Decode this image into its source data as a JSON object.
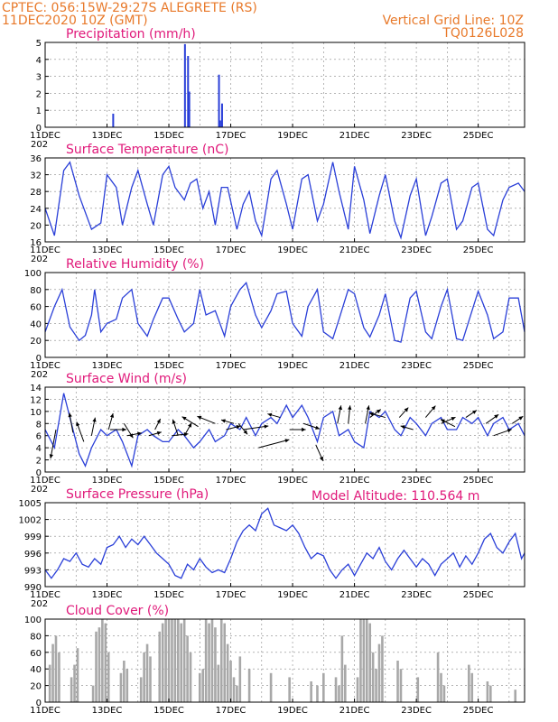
{
  "header": {
    "line1_left": "CPTEC:   056:15W-29:27S   ALEGRETE (RS)",
    "line2_left": "11DEC2020 10Z (GMT)",
    "line2_right": "Vertical Grid Line: 10Z",
    "line3_right": "TQ0126L028"
  },
  "colors": {
    "header": "#e8792a",
    "panel_title": "#e0197a",
    "series": "#2a3fd8",
    "cloud_bar": "#a8a8a8",
    "wind_arrow": "#000000"
  },
  "x_axis": {
    "labels": [
      "11DEC",
      "13DEC",
      "15DEC",
      "17DEC",
      "19DEC",
      "21DEC",
      "23DEC",
      "25DEC"
    ],
    "label_days": [
      0,
      2,
      4,
      6,
      8,
      10,
      12,
      14
    ],
    "range_days": [
      0,
      15.5
    ],
    "cut_prefix": "202"
  },
  "chart_data": [
    {
      "type": "bar",
      "title": "Precipitation (mm/h)",
      "ylim": [
        0,
        5
      ],
      "yticks": [
        "0",
        "1",
        "2",
        "3",
        "4",
        "5"
      ],
      "grid": true,
      "x_days": [
        2.2,
        4.52,
        4.62,
        4.66,
        5.62,
        5.66,
        5.72
      ],
      "values": [
        0.8,
        4.9,
        4.2,
        2.1,
        3.1,
        0.4,
        1.4
      ]
    },
    {
      "type": "line",
      "title": "Surface Temperature (nC)",
      "ylim": [
        16,
        36
      ],
      "yticks": [
        "16",
        "20",
        "24",
        "28",
        "32",
        "36"
      ],
      "grid": true,
      "x_days": [
        0,
        0.3,
        0.6,
        0.8,
        1.1,
        1.5,
        1.8,
        2.0,
        2.3,
        2.5,
        2.8,
        3.0,
        3.3,
        3.5,
        3.8,
        4.0,
        4.2,
        4.5,
        4.7,
        4.9,
        5.1,
        5.3,
        5.5,
        5.7,
        5.9,
        6.2,
        6.4,
        6.6,
        6.8,
        7.0,
        7.3,
        7.5,
        7.8,
        8.0,
        8.3,
        8.5,
        8.8,
        9.0,
        9.3,
        9.5,
        9.8,
        10.0,
        10.3,
        10.5,
        10.8,
        11.0,
        11.3,
        11.5,
        11.8,
        12.0,
        12.3,
        12.5,
        12.8,
        13.0,
        13.3,
        13.5,
        13.8,
        14.0,
        14.3,
        14.5,
        14.8,
        15.0,
        15.3,
        15.5
      ],
      "values": [
        24,
        17.5,
        33,
        35,
        27,
        19,
        20.5,
        32,
        29,
        20,
        29,
        33,
        25,
        20,
        32,
        34,
        29,
        26,
        30,
        31,
        24,
        28,
        20,
        29,
        29,
        19,
        25,
        28,
        21,
        17.5,
        31,
        33,
        25,
        19,
        31,
        32,
        21,
        25,
        35,
        28,
        19,
        34,
        26,
        18,
        27,
        32,
        21,
        17,
        27,
        31,
        17.5,
        22,
        30,
        31,
        19,
        21,
        29,
        30,
        19,
        17.5,
        26,
        29,
        30,
        28
      ]
    },
    {
      "type": "line",
      "title": "Relative Humidity (%)",
      "ylim": [
        0,
        100
      ],
      "yticks": [
        "0",
        "20",
        "40",
        "60",
        "80",
        "100"
      ],
      "grid": true,
      "x_days": [
        0,
        0.3,
        0.55,
        0.8,
        1.1,
        1.3,
        1.5,
        1.6,
        1.8,
        2.0,
        2.3,
        2.5,
        2.8,
        3.0,
        3.3,
        3.5,
        3.8,
        4.0,
        4.3,
        4.5,
        4.8,
        5.0,
        5.2,
        5.5,
        5.8,
        6.0,
        6.3,
        6.5,
        6.8,
        7.0,
        7.3,
        7.5,
        7.8,
        8.0,
        8.3,
        8.5,
        8.8,
        9.0,
        9.3,
        9.5,
        9.8,
        10.0,
        10.3,
        10.5,
        10.8,
        11.0,
        11.3,
        11.5,
        11.8,
        12.0,
        12.3,
        12.5,
        12.8,
        13.0,
        13.3,
        13.5,
        13.8,
        14.0,
        14.3,
        14.5,
        14.8,
        15.0,
        15.3,
        15.5
      ],
      "values": [
        30,
        60,
        80,
        36,
        20,
        26,
        50,
        80,
        30,
        40,
        45,
        70,
        80,
        40,
        25,
        45,
        70,
        70,
        45,
        30,
        40,
        80,
        50,
        55,
        25,
        60,
        80,
        88,
        50,
        35,
        55,
        75,
        78,
        40,
        25,
        60,
        80,
        30,
        22,
        45,
        80,
        75,
        35,
        24,
        50,
        75,
        20,
        18,
        70,
        78,
        30,
        22,
        60,
        80,
        22,
        20,
        55,
        78,
        50,
        22,
        30,
        70,
        70,
        30
      ]
    },
    {
      "type": "line",
      "title": "Surface Wind (m/s)",
      "ylim": [
        0,
        14
      ],
      "yticks": [
        "0",
        "2",
        "4",
        "6",
        "8",
        "10",
        "12",
        "14"
      ],
      "grid": true,
      "x_days": [
        0,
        0.3,
        0.6,
        0.8,
        1.1,
        1.3,
        1.5,
        1.8,
        2.0,
        2.3,
        2.5,
        2.8,
        3.0,
        3.3,
        3.5,
        3.8,
        4.0,
        4.3,
        4.5,
        4.8,
        5.0,
        5.3,
        5.5,
        5.8,
        6.0,
        6.3,
        6.5,
        6.8,
        7.0,
        7.3,
        7.5,
        7.8,
        8.0,
        8.3,
        8.5,
        8.8,
        9.0,
        9.3,
        9.5,
        9.8,
        10.0,
        10.3,
        10.5,
        10.8,
        11.0,
        11.3,
        11.5,
        11.8,
        12.0,
        12.3,
        12.5,
        12.8,
        13.0,
        13.3,
        13.5,
        13.8,
        14.0,
        14.3,
        14.5,
        14.8,
        15.0,
        15.3,
        15.5
      ],
      "values": [
        7,
        4,
        13,
        9,
        3,
        1,
        4,
        7,
        6,
        7,
        5,
        1,
        6,
        7,
        6,
        5,
        5,
        7,
        6,
        4,
        5,
        7,
        5,
        6,
        8,
        7,
        9,
        6,
        8,
        9,
        8,
        11,
        9,
        11,
        9,
        5,
        9,
        10,
        6,
        7,
        5,
        4,
        10,
        9,
        10,
        7,
        6,
        9,
        8,
        6,
        8,
        9,
        7,
        7,
        9,
        8,
        9,
        6,
        8,
        9,
        7,
        8,
        6
      ],
      "arrows": [
        {
          "x": 0.35,
          "y": 7,
          "u": -0.3,
          "v": -1.6
        },
        {
          "x": 0.9,
          "y": 6.5,
          "u": -0.2,
          "v": 1.1
        },
        {
          "x": 1.25,
          "y": 5,
          "u": -0.4,
          "v": 1.1
        },
        {
          "x": 1.5,
          "y": 6,
          "u": 0.2,
          "v": 1.0
        },
        {
          "x": 2.05,
          "y": 7,
          "u": 0.25,
          "v": 0.9
        },
        {
          "x": 2.1,
          "y": 7,
          "u": 0.9,
          "v": 0.0
        },
        {
          "x": 2.55,
          "y": 8,
          "u": 0.5,
          "v": -0.8
        },
        {
          "x": 2.65,
          "y": 6,
          "u": 0.8,
          "v": 0.15
        },
        {
          "x": 3.35,
          "y": 6,
          "u": 0.7,
          "v": 0.2
        },
        {
          "x": 3.55,
          "y": 7,
          "u": 0.3,
          "v": 0.6
        },
        {
          "x": 4.1,
          "y": 6,
          "u": 0.9,
          "v": 0.1
        },
        {
          "x": 4.5,
          "y": 6,
          "u": 0.4,
          "v": 0.7
        },
        {
          "x": 4.3,
          "y": 6,
          "u": -0.3,
          "v": 0.9
        },
        {
          "x": 4.95,
          "y": 7.5,
          "u": -0.9,
          "v": 0.55
        },
        {
          "x": 5.5,
          "y": 8,
          "u": -1.0,
          "v": 0.4
        },
        {
          "x": 5.85,
          "y": 7,
          "u": 0.8,
          "v": 0.2
        },
        {
          "x": 6.1,
          "y": 8,
          "u": -0.7,
          "v": 0.2
        },
        {
          "x": 6.25,
          "y": 8,
          "u": 0.5,
          "v": -0.6
        },
        {
          "x": 6.4,
          "y": 7,
          "u": 1.4,
          "v": 0.2
        },
        {
          "x": 6.9,
          "y": 4,
          "u": 1.7,
          "v": 0.45
        },
        {
          "x": 7.6,
          "y": 9,
          "u": -0.7,
          "v": 0.2
        },
        {
          "x": 7.9,
          "y": 7,
          "u": 0.9,
          "v": 0.0
        },
        {
          "x": 8.35,
          "y": 8,
          "u": 0.9,
          "v": -0.3
        },
        {
          "x": 8.75,
          "y": 4.5,
          "u": 0.4,
          "v": -0.9
        },
        {
          "x": 9.45,
          "y": 8,
          "u": 0.2,
          "v": 1.0
        },
        {
          "x": 9.8,
          "y": 8,
          "u": 0.1,
          "v": 1.0
        },
        {
          "x": 10.35,
          "y": 8,
          "u": 0.2,
          "v": 1.0
        },
        {
          "x": 10.5,
          "y": 9,
          "u": 0.6,
          "v": 0.45
        },
        {
          "x": 11.0,
          "y": 9,
          "u": -0.9,
          "v": 0.25
        },
        {
          "x": 11.45,
          "y": 9,
          "u": 0.5,
          "v": 0.55
        },
        {
          "x": 11.9,
          "y": 7,
          "u": -0.7,
          "v": 0.2
        },
        {
          "x": 12.3,
          "y": 9,
          "u": 0.55,
          "v": 0.65
        },
        {
          "x": 12.8,
          "y": 8,
          "u": 0.8,
          "v": 0.35
        },
        {
          "x": 13.25,
          "y": 7.5,
          "u": -0.8,
          "v": 0.4
        },
        {
          "x": 13.6,
          "y": 9,
          "u": 0.6,
          "v": 0.4
        },
        {
          "x": 14.25,
          "y": 8,
          "u": 0.7,
          "v": 0.5
        },
        {
          "x": 14.5,
          "y": 6,
          "u": 1.0,
          "v": 0.35
        },
        {
          "x": 15.1,
          "y": 8,
          "u": 0.6,
          "v": 0.4
        }
      ]
    },
    {
      "type": "line",
      "title": "Surface Pressure (hPa)",
      "annotation": "Model Altitude: 110.564  m",
      "ylim": [
        990,
        1005
      ],
      "yticks": [
        "990",
        "993",
        "996",
        "999",
        "1002",
        "1005"
      ],
      "grid": true,
      "x_days": [
        0,
        0.2,
        0.4,
        0.6,
        0.8,
        1.0,
        1.2,
        1.4,
        1.6,
        1.8,
        2.0,
        2.2,
        2.4,
        2.6,
        2.8,
        3.0,
        3.2,
        3.4,
        3.6,
        3.8,
        4.0,
        4.2,
        4.4,
        4.6,
        4.8,
        5.0,
        5.2,
        5.4,
        5.6,
        5.8,
        6.0,
        6.2,
        6.4,
        6.6,
        6.8,
        7.0,
        7.2,
        7.4,
        7.6,
        7.8,
        8.0,
        8.2,
        8.4,
        8.6,
        8.8,
        9.0,
        9.2,
        9.4,
        9.6,
        9.8,
        10.0,
        10.2,
        10.4,
        10.6,
        10.8,
        11.0,
        11.2,
        11.4,
        11.6,
        11.8,
        12.0,
        12.2,
        12.4,
        12.6,
        12.8,
        13.0,
        13.2,
        13.4,
        13.6,
        13.8,
        14.0,
        14.2,
        14.4,
        14.6,
        14.8,
        15.0,
        15.2,
        15.4,
        15.5
      ],
      "values": [
        993,
        991.5,
        993,
        995,
        994.5,
        996,
        994,
        993.5,
        995,
        994,
        997,
        997.5,
        999,
        997,
        998.5,
        997.5,
        999,
        997.5,
        996,
        995,
        994,
        992,
        991.5,
        994,
        993,
        995,
        993.5,
        992.5,
        993,
        992.5,
        995,
        998,
        1000,
        1001,
        1000,
        1003,
        1004,
        1001,
        1000.5,
        1000,
        1001,
        999.5,
        997,
        995,
        996,
        995.5,
        993,
        991.5,
        993,
        994,
        992,
        994,
        996,
        995,
        997,
        994.5,
        993,
        995,
        996.5,
        995,
        993.5,
        995,
        994,
        992,
        994,
        995,
        996,
        993.5,
        995.5,
        994,
        996,
        998.5,
        999.5,
        997,
        996,
        998,
        999.5,
        995,
        996
      ]
    },
    {
      "type": "bar",
      "title": "Cloud Cover (%)",
      "ylim": [
        0,
        100
      ],
      "yticks": [
        "0",
        "20",
        "40",
        "60",
        "80",
        "100"
      ],
      "grid": true,
      "x_days": [
        0.15,
        0.25,
        0.35,
        0.45,
        0.85,
        0.95,
        1.05,
        1.55,
        1.65,
        1.75,
        1.85,
        1.95,
        2.05,
        2.45,
        2.55,
        2.65,
        3.1,
        3.2,
        3.3,
        3.4,
        3.7,
        3.8,
        3.9,
        4.0,
        4.1,
        4.2,
        4.3,
        4.4,
        4.5,
        4.6,
        4.7,
        5.0,
        5.1,
        5.2,
        5.3,
        5.4,
        5.5,
        5.6,
        5.7,
        5.8,
        5.9,
        6.0,
        6.1,
        6.2,
        6.3,
        6.6,
        7.3,
        7.9,
        8.6,
        8.8,
        9.0,
        9.4,
        9.5,
        9.6,
        9.7,
        10.1,
        10.2,
        10.3,
        10.4,
        10.5,
        10.6,
        10.7,
        10.8,
        10.9,
        11.4,
        11.5,
        12.05,
        12.7,
        12.8,
        12.9,
        13.7,
        13.8,
        14.3,
        14.4,
        15.2
      ],
      "values": [
        45,
        70,
        80,
        60,
        30,
        45,
        65,
        20,
        85,
        90,
        100,
        95,
        60,
        35,
        50,
        40,
        30,
        60,
        70,
        55,
        85,
        95,
        100,
        100,
        100,
        100,
        100,
        95,
        100,
        80,
        60,
        35,
        40,
        100,
        95,
        100,
        90,
        45,
        100,
        95,
        70,
        50,
        30,
        20,
        55,
        40,
        35,
        30,
        25,
        20,
        35,
        30,
        20,
        80,
        45,
        30,
        100,
        100,
        100,
        95,
        60,
        40,
        70,
        80,
        50,
        40,
        30,
        60,
        35,
        20,
        45,
        35,
        25,
        20,
        15
      ]
    }
  ]
}
